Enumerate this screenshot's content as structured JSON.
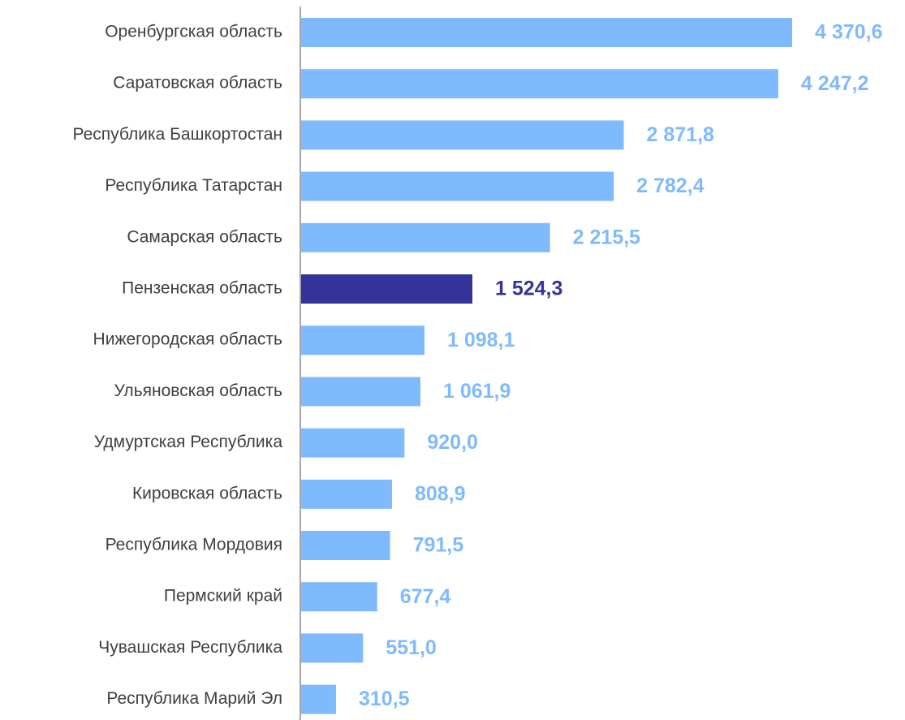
{
  "chart_data": {
    "type": "bar",
    "orientation": "horizontal",
    "categories": [
      "Оренбургская область",
      "Саратовская область",
      "Республика Башкортостан",
      "Республика Татарстан",
      "Самарская область",
      "Пензенская область",
      "Нижегородская область",
      "Ульяновская область",
      "Удмуртская Республика",
      "Кировская область",
      "Республика Мордовия",
      "Пермский край",
      "Чувашская Республика",
      "Республика Марий Эл"
    ],
    "values": [
      4370.6,
      4247.2,
      2871.8,
      2782.4,
      2215.5,
      1524.3,
      1098.1,
      1061.9,
      920.0,
      808.9,
      791.5,
      677.4,
      551.0,
      310.5
    ],
    "value_labels": [
      "4 370,6",
      "4 247,2",
      "2 871,8",
      "2 782,4",
      "2 215,5",
      "1 524,3",
      "1 098,1",
      "1 061,9",
      "920,0",
      "808,9",
      "791,5",
      "677,4",
      "551,0",
      "310,5"
    ],
    "colors": [
      "#7fbaff",
      "#7fbaff",
      "#7fbaff",
      "#7fbaff",
      "#7fbaff",
      "#333399",
      "#7fbaff",
      "#7fbaff",
      "#7fbaff",
      "#7fbaff",
      "#7fbaff",
      "#7fbaff",
      "#7fbaff",
      "#7fbaff"
    ]
  }
}
